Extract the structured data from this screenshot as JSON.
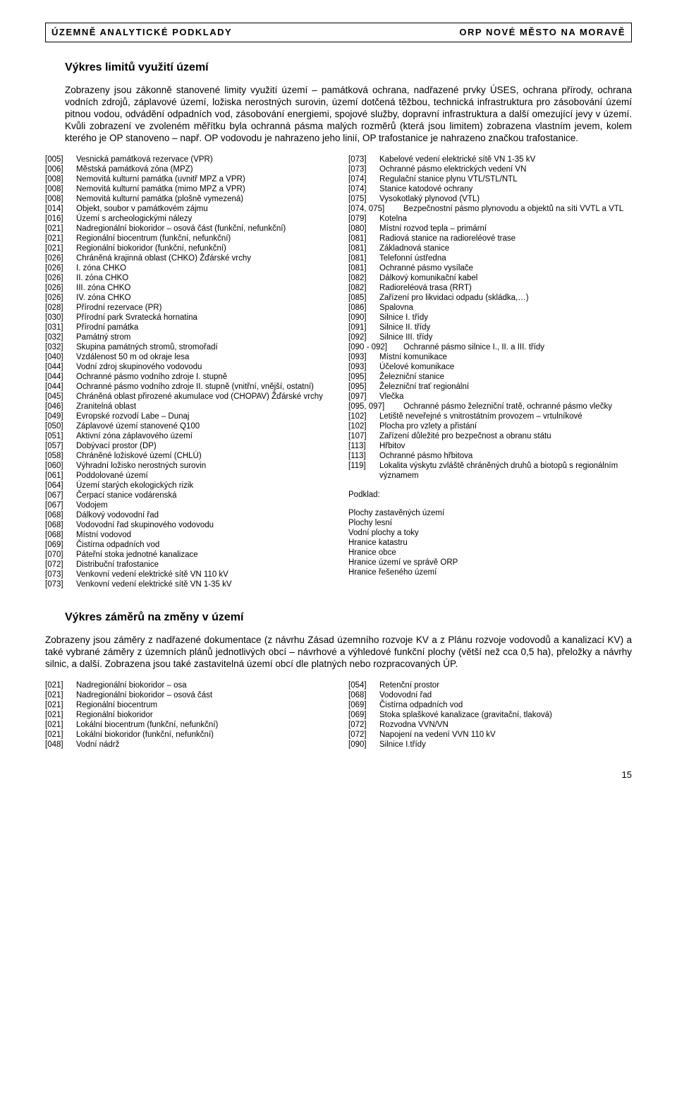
{
  "header": {
    "left": "ÚZEMNĚ ANALYTICKÉ PODKLADY",
    "right": "ORP NOVÉ MĚSTO NA MORAVĚ"
  },
  "section1": {
    "title": "Výkres limitů využití území",
    "paragraph": "Zobrazeny jsou zákonně stanovené limity využití území – památková ochrana, nadřazené prvky ÚSES, ochrana přírody, ochrana vodních zdrojů, záplavové území, ložiska nerostných surovin, území dotčená těžbou, technická infrastruktura pro zásobování území pitnou vodou, odvádění odpadních vod, zásobování energiemi, spojové služby, dopravní infrastruktura a další omezující jevy v území. Kvůli zobrazení ve zvoleném měřítku byla ochranná pásma malých rozměrů (která jsou limitem) zobrazena vlastním jevem, kolem kterého je OP stanoveno – např. OP vodovodu je nahrazeno jeho linií, OP trafostanice je nahrazeno značkou trafostanice."
  },
  "list1": {
    "left": [
      {
        "c": "[005]",
        "t": "Vesnická památková rezervace (VPR)"
      },
      {
        "c": "[006]",
        "t": "Městská památková zóna (MPZ)"
      },
      {
        "c": "[008]",
        "t": "Nemovitá kulturní památka (uvnitř MPZ a VPR)"
      },
      {
        "c": "[008]",
        "t": "Nemovitá kulturní památka (mimo MPZ a VPR)"
      },
      {
        "c": "[008]",
        "t": "Nemovitá kulturní památka (plošně vymezená)"
      },
      {
        "c": "[014]",
        "t": "Objekt, soubor v památkovém zájmu"
      },
      {
        "c": "[016]",
        "t": "Území s archeologickými nálezy"
      },
      {
        "c": "[021]",
        "t": "Nadregionální biokoridor – osová část (funkční, nefunkční)"
      },
      {
        "c": "[021]",
        "t": "Regionální biocentrum (funkční, nefunkční)"
      },
      {
        "c": "[021]",
        "t": "Regionální biokoridor (funkční, nefunkční)"
      },
      {
        "c": "[026]",
        "t": "Chráněná krajinná oblast (CHKO) Žďárské vrchy"
      },
      {
        "c": "[026]",
        "t": "I. zóna CHKO"
      },
      {
        "c": "[026]",
        "t": "II. zóna CHKO"
      },
      {
        "c": "[026]",
        "t": "III. zóna CHKO"
      },
      {
        "c": "[026]",
        "t": "IV. zóna CHKO"
      },
      {
        "c": "[028]",
        "t": "Přírodní rezervace (PR)"
      },
      {
        "c": "[030]",
        "t": "Přírodní park Svratecká hornatina"
      },
      {
        "c": "[031]",
        "t": "Přírodní památka"
      },
      {
        "c": "[032]",
        "t": "Památný strom"
      },
      {
        "c": "[032]",
        "t": "Skupina  památných stromů, stromořadí"
      },
      {
        "c": "[040]",
        "t": "Vzdálenost 50 m od okraje lesa"
      },
      {
        "c": "[044]",
        "t": "Vodní zdroj skupinového vodovodu"
      },
      {
        "c": "[044]",
        "t": "Ochranné pásmo vodního zdroje I. stupně"
      },
      {
        "c": "[044]",
        "t": "Ochranné pásmo vodního zdroje II. stupně (vnitřní, vnější, ostatní)"
      },
      {
        "c": "[045]",
        "t": "Chráněná oblast přirozené akumulace vod (CHOPAV) Žďárské vrchy"
      },
      {
        "c": "[046]",
        "t": "Zranitelná oblast"
      },
      {
        "c": "[049]",
        "t": "Evropské rozvodí Labe – Dunaj"
      },
      {
        "c": "[050]",
        "t": "Záplavové území stanovené Q100"
      },
      {
        "c": "[051]",
        "t": "Aktivní zóna záplavového území"
      },
      {
        "c": "[057]",
        "t": "Dobývací prostor (DP)"
      },
      {
        "c": "[058]",
        "t": "Chráněné ložiskové území (CHLÚ)"
      },
      {
        "c": "[060]",
        "t": "Výhradní ložisko nerostných surovin"
      },
      {
        "c": "[061]",
        "t": "Poddolované území"
      },
      {
        "c": "[064]",
        "t": "Území starých ekologických rizik"
      },
      {
        "c": "[067]",
        "t": "Čerpací stanice vodárenská"
      },
      {
        "c": "[067]",
        "t": "Vodojem"
      },
      {
        "c": "[068]",
        "t": "Dálkový vodovodní řad"
      },
      {
        "c": "[068]",
        "t": "Vodovodní řad skupinového vodovodu"
      },
      {
        "c": "[068]",
        "t": "Místní vodovod"
      },
      {
        "c": "[069]",
        "t": "Čistírna odpadních vod"
      },
      {
        "c": "[070]",
        "t": "Páteřní stoka jednotné kanalizace"
      },
      {
        "c": "[072]",
        "t": "Distribuční trafostanice"
      },
      {
        "c": "[073]",
        "t": "Venkovní vedení elektrické sítě VN 110 kV"
      },
      {
        "c": "[073]",
        "t": "Venkovní vedení elektrické sítě VN 1-35 kV"
      }
    ],
    "right": [
      {
        "c": "[073]",
        "t": "Kabelové vedení elektrické sítě VN 1-35 kV"
      },
      {
        "c": "[073]",
        "t": "Ochranné pásmo elektrických vedení VN"
      },
      {
        "c": "[074]",
        "t": "Regulační stanice plynu VTL/STL/NTL"
      },
      {
        "c": "[074]",
        "t": "Stanice katodové ochrany"
      },
      {
        "c": "[075]",
        "t": "Vysokotlaký plynovod (VTL)"
      },
      {
        "c": "[074, 075]",
        "t": "Bezpečnostní pásmo plynovodu a objektů na síti VVTL a VTL",
        "wide": true
      },
      {
        "c": "[079]",
        "t": "Kotelna"
      },
      {
        "c": "[080]",
        "t": "Místní rozvod tepla – primární"
      },
      {
        "c": "[081]",
        "t": "Radiová stanice na radioreléové trase"
      },
      {
        "c": "[081]",
        "t": "Základnová stanice"
      },
      {
        "c": "[081]",
        "t": "Telefonní ústředna"
      },
      {
        "c": "[081]",
        "t": "Ochranné pásmo vysílače"
      },
      {
        "c": "[082]",
        "t": "Dálkový komunikační kabel"
      },
      {
        "c": "[082]",
        "t": "Radioreléová trasa (RRT)"
      },
      {
        "c": "[085]",
        "t": "Zařízení pro likvidaci odpadu (skládka,…)"
      },
      {
        "c": "[086]",
        "t": "Spalovna"
      },
      {
        "c": "[090]",
        "t": "Silnice I. třídy"
      },
      {
        "c": "[091]",
        "t": "Silnice II. třídy"
      },
      {
        "c": "[092]",
        "t": "Silnice III. třídy"
      },
      {
        "c": "[090 - 092]",
        "t": "Ochranné pásmo silnice I., II. a III. třídy",
        "wide": true
      },
      {
        "c": "[093]",
        "t": "Místní komunikace"
      },
      {
        "c": "[093]",
        "t": "Účelové komunikace"
      },
      {
        "c": "[095]",
        "t": "Železniční stanice"
      },
      {
        "c": "[095]",
        "t": "Železniční trať regionální"
      },
      {
        "c": "[097]",
        "t": "Vlečka"
      },
      {
        "c": "[095, 097]",
        "t": "Ochranné pásmo železniční tratě, ochranné pásmo vlečky",
        "wide": true
      },
      {
        "c": "[102]",
        "t": "Letiště neveřejné s vnitrostátním provozem – vrtulníkové"
      },
      {
        "c": "[102]",
        "t": "Plocha pro vzlety a přistání"
      },
      {
        "c": "[107]",
        "t": "Zařízení důležité pro bezpečnost a obranu státu"
      },
      {
        "c": "[113]",
        "t": "Hřbitov"
      },
      {
        "c": "[113]",
        "t": "Ochranné pásmo hřbitova"
      },
      {
        "c": "[119]",
        "t": "Lokalita výskytu zvláště chráněných druhů a biotopů s regionálním významem"
      }
    ],
    "podklad_label": "Podklad:",
    "podklad": [
      "Plochy zastavěných území",
      "Plochy lesní",
      "Vodní plochy a toky",
      "Hranice katastru",
      "Hranice obce",
      "Hranice území ve správě ORP",
      "Hranice řešeného území"
    ]
  },
  "section2": {
    "title": "Výkres záměrů na změny v území",
    "paragraph": "Zobrazeny jsou záměry z nadřazené dokumentace (z návrhu Zásad územního rozvoje KV a z Plánu rozvoje vodovodů a kanalizací KV) a také vybrané záměry z územních plánů jednotlivých obcí – návrhové a výhledové funkční plochy (větší než cca 0,5 ha), přeložky a návrhy silnic, a další. Zobrazena jsou také zastavitelná území obcí dle platných nebo rozpracovaných ÚP."
  },
  "list2": {
    "left": [
      {
        "c": "[021]",
        "t": "Nadregionální biokoridor – osa"
      },
      {
        "c": "[021]",
        "t": "Nadregionální biokoridor – osová část"
      },
      {
        "c": "[021]",
        "t": "Regionální biocentrum"
      },
      {
        "c": "[021]",
        "t": "Regionální biokoridor"
      },
      {
        "c": "[021]",
        "t": "Lokální biocentrum (funkční, nefunkční)"
      },
      {
        "c": "[021]",
        "t": "Lokální biokoridor (funkční, nefunkční)"
      },
      {
        "c": "[048]",
        "t": "Vodní nádrž"
      }
    ],
    "right": [
      {
        "c": "[054]",
        "t": "Retenční prostor"
      },
      {
        "c": "[068]",
        "t": "Vodovodní řad"
      },
      {
        "c": "[069]",
        "t": "Čistírna odpadních vod"
      },
      {
        "c": "[069]",
        "t": "Stoka splaškové kanalizace (gravitační, tlaková)"
      },
      {
        "c": "[072]",
        "t": "Rozvodna VVN/VN"
      },
      {
        "c": "[072]",
        "t": "Napojení na vedení VVN 110 kV"
      },
      {
        "c": "[090]",
        "t": "Silnice I.třídy"
      }
    ]
  },
  "page_number": "15"
}
